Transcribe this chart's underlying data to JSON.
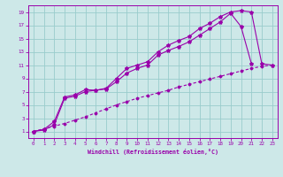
{
  "xlabel": "Windchill (Refroidissement éolien,°C)",
  "bg_color": "#cde8e8",
  "line_color": "#9900aa",
  "grid_color": "#99cccc",
  "xlim": [
    -0.5,
    23.5
  ],
  "ylim": [
    0,
    20
  ],
  "xticks": [
    0,
    1,
    2,
    3,
    4,
    5,
    6,
    7,
    8,
    9,
    10,
    11,
    12,
    13,
    14,
    15,
    16,
    17,
    18,
    19,
    20,
    21,
    22,
    23
  ],
  "yticks": [
    1,
    3,
    5,
    7,
    9,
    11,
    13,
    15,
    17,
    19
  ],
  "curve1_x": [
    0,
    1,
    2,
    3,
    4,
    5,
    6,
    7,
    8,
    9,
    10,
    11,
    12,
    13,
    14,
    15,
    16,
    17,
    18,
    19,
    20,
    21,
    22,
    23
  ],
  "curve1_y": [
    1,
    1.3,
    2.5,
    6.2,
    6.5,
    7.3,
    7.2,
    7.5,
    9.0,
    10.5,
    11.0,
    11.5,
    13.0,
    14.0,
    14.7,
    15.3,
    16.5,
    17.3,
    18.3,
    19.0,
    19.2,
    19.0,
    11.2,
    11.0
  ],
  "curve2_x": [
    0,
    1,
    2,
    3,
    4,
    5,
    6,
    7,
    8,
    9,
    10,
    11,
    12,
    13,
    14,
    15,
    16,
    17,
    18,
    19,
    20,
    21
  ],
  "curve2_y": [
    1,
    1.2,
    2.0,
    6.0,
    6.3,
    7.0,
    7.2,
    7.4,
    8.5,
    9.8,
    10.5,
    11.0,
    12.5,
    13.2,
    13.8,
    14.5,
    15.5,
    16.5,
    17.5,
    18.8,
    16.8,
    11.2
  ],
  "curve3_x": [
    0,
    1,
    2,
    3,
    4,
    5,
    6,
    7,
    8,
    9,
    10,
    11,
    12,
    13,
    14,
    15,
    16,
    17,
    18,
    19,
    20,
    21,
    22,
    23
  ],
  "curve3_y": [
    1,
    1.4,
    1.8,
    2.2,
    2.7,
    3.2,
    3.8,
    4.4,
    5.0,
    5.5,
    6.0,
    6.4,
    6.8,
    7.2,
    7.7,
    8.1,
    8.5,
    8.9,
    9.3,
    9.7,
    10.1,
    10.5,
    10.8,
    11.0
  ]
}
